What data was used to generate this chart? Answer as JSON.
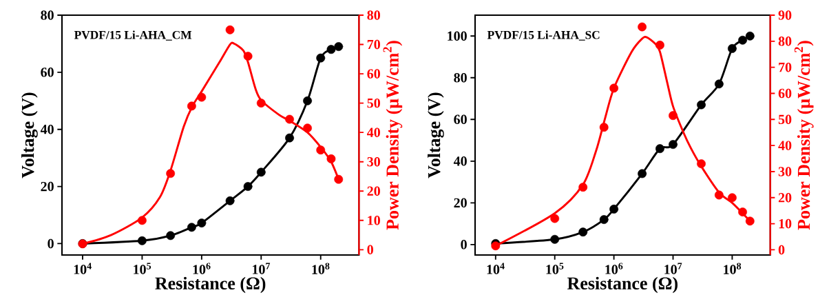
{
  "chart_data": [
    {
      "type": "line",
      "title": "PVDF/15 Li-AHA_CM",
      "xlabel": "Resistance (Ω)",
      "ylabel": "Voltage (V)",
      "y2label": "Power Density (μW/cm$^{2}$)",
      "log": "x",
      "grid": false,
      "x": [
        10000,
        100000,
        300000,
        680000,
        1000000,
        3000000,
        6000000,
        10000000,
        30000000,
        60000000,
        100000000,
        150000000,
        200000000
      ],
      "xlim": [
        4500,
        440000000
      ],
      "xticks": [
        {
          "value": 10000,
          "label": "10$^{4}$"
        },
        {
          "value": 100000,
          "label": "10$^{5}$"
        },
        {
          "value": 1000000,
          "label": "10$^{6}$"
        },
        {
          "value": 10000000,
          "label": "10$^{7}$"
        },
        {
          "value": 100000000,
          "label": "10$^{8}$"
        }
      ],
      "ylim": [
        -4,
        80
      ],
      "yticks": [
        0,
        20,
        40,
        60,
        80
      ],
      "y2lim": [
        -1.8,
        80
      ],
      "y2ticks": [
        0,
        10,
        20,
        30,
        40,
        50,
        60,
        70,
        80
      ],
      "series": [
        {
          "color": "#000000",
          "marker": "circle",
          "values": [
            0,
            1,
            2.8,
            5.7,
            7.2,
            15,
            20,
            25,
            37,
            50,
            65,
            68,
            69
          ]
        },
        {
          "type": "scatter",
          "axis": "y2",
          "color": "#ff0000",
          "marker": "circle",
          "values": [
            2,
            10,
            26,
            49,
            52,
            75,
            66,
            50,
            44.5,
            41.5,
            34,
            31,
            24
          ]
        },
        {
          "axis": "y2",
          "color": "#ff0000",
          "marker": "none",
          "x": [
            10000,
            30000,
            100000,
            200000,
            300000,
            500000,
            700000,
            1000000,
            2000000,
            3000000,
            3500000,
            5000000,
            6000000,
            8000000,
            10000000,
            20000000,
            30000000,
            60000000,
            100000000,
            150000000,
            200000000
          ],
          "values": [
            2,
            5,
            11,
            18,
            27,
            42,
            49,
            54,
            64,
            70,
            70.3,
            68,
            64,
            55,
            51,
            46,
            44,
            40,
            35,
            30,
            24
          ]
        }
      ]
    },
    {
      "type": "line",
      "title": "PVDF/15 Li-AHA_SC",
      "xlabel": "Resistance (Ω)",
      "ylabel": "Voltage (V)",
      "y2label": "Power Density (μW/cm$^{2}$)",
      "log": "x",
      "grid": false,
      "x": [
        10000,
        100000,
        300000,
        680000,
        1000000,
        3000000,
        6000000,
        10000000,
        30000000,
        60000000,
        100000000,
        150000000,
        200000000
      ],
      "xlim": [
        4500,
        440000000
      ],
      "xticks": [
        {
          "value": 10000,
          "label": "10$^{4}$"
        },
        {
          "value": 100000,
          "label": "10$^{5}$"
        },
        {
          "value": 1000000,
          "label": "10$^{6}$"
        },
        {
          "value": 10000000,
          "label": "10$^{7}$"
        },
        {
          "value": 100000000,
          "label": "10$^{8}$"
        }
      ],
      "ylim": [
        -5,
        110
      ],
      "yticks": [
        0,
        20,
        40,
        60,
        80,
        100
      ],
      "y2lim": [
        -2,
        90
      ],
      "y2ticks": [
        0,
        10,
        20,
        30,
        40,
        50,
        60,
        70,
        80,
        90
      ],
      "series": [
        {
          "color": "#000000",
          "marker": "circle",
          "values": [
            0.5,
            2.5,
            6,
            12,
            17,
            34,
            46,
            48,
            67,
            77,
            94,
            98,
            100
          ]
        },
        {
          "type": "scatter",
          "axis": "y2",
          "color": "#ff0000",
          "marker": "circle",
          "values": [
            1.5,
            12,
            24,
            47,
            62,
            85.5,
            78.5,
            51.5,
            33,
            21,
            20,
            14.5,
            11
          ]
        },
        {
          "axis": "y2",
          "color": "#ff0000",
          "marker": "none",
          "x": [
            10000,
            100000,
            300000,
            500000,
            700000,
            1000000,
            2000000,
            3000000,
            3600000,
            5000000,
            6000000,
            8000000,
            10000000,
            15000000,
            20000000,
            30000000,
            60000000,
            100000000,
            150000000,
            200000000
          ],
          "values": [
            1.5,
            14,
            25,
            38,
            50,
            62,
            76,
            81,
            81.5,
            79,
            76,
            64,
            55,
            45,
            39,
            32,
            22,
            18,
            14,
            11
          ]
        }
      ]
    }
  ]
}
